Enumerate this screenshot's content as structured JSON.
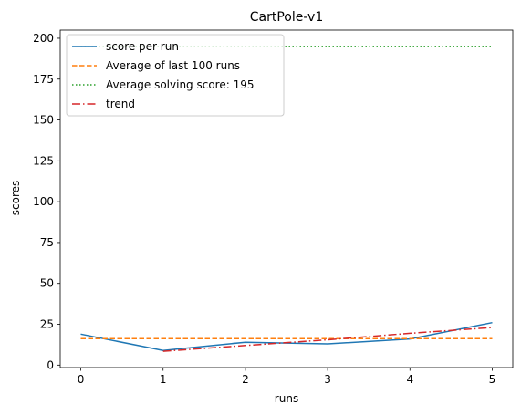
{
  "chart_data": {
    "type": "line",
    "title": "CartPole-v1",
    "xlabel": "runs",
    "ylabel": "scores",
    "xlim": [
      -0.25,
      5.25
    ],
    "ylim": [
      -1.5,
      205
    ],
    "xticks": [
      0,
      1,
      2,
      3,
      4,
      5
    ],
    "yticks": [
      0,
      25,
      50,
      75,
      100,
      125,
      150,
      175,
      200
    ],
    "grid": false,
    "legend_position": "top-left",
    "series": [
      {
        "name": "score per run",
        "style": "solid",
        "color": "#1f77b4",
        "x": [
          0,
          1,
          2,
          3,
          4,
          5
        ],
        "values": [
          19,
          9,
          14,
          13,
          16,
          26
        ]
      },
      {
        "name": "Average of last 100 runs",
        "style": "dashed",
        "color": "#ff7f0e",
        "x": [
          0,
          5
        ],
        "values": [
          16.2,
          16.2
        ]
      },
      {
        "name": "Average solving score: 195",
        "style": "dotted",
        "color": "#2ca02c",
        "x": [
          0,
          5
        ],
        "values": [
          195,
          195
        ]
      },
      {
        "name": "trend",
        "style": "dashdot",
        "color": "#d62728",
        "x": [
          1,
          2,
          3,
          4,
          5
        ],
        "values": [
          8.5,
          12,
          15.5,
          19.5,
          23
        ]
      }
    ]
  }
}
